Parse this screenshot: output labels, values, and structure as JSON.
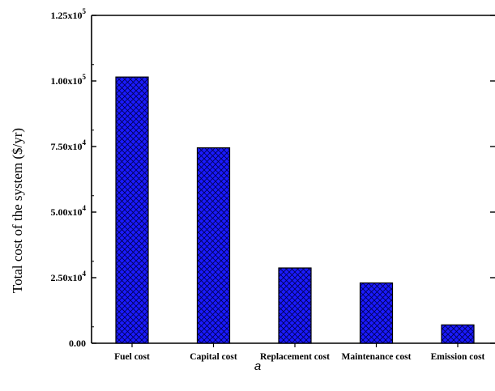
{
  "chart_data": {
    "type": "bar",
    "categories": [
      "Fuel cost",
      "Capital cost",
      "Replacement cost",
      "Maintenance cost",
      "Emission cost"
    ],
    "values": [
      101500,
      74500,
      28700,
      23000,
      7000
    ],
    "ylabel": "Total cost of the system ($/yr)",
    "xlabel": "",
    "ylim": [
      0,
      125000
    ],
    "yticks": [
      {
        "value": 0,
        "mantissa": "0.00",
        "exponent": ""
      },
      {
        "value": 25000,
        "mantissa": "2.50x10",
        "exponent": "4"
      },
      {
        "value": 50000,
        "mantissa": "5.00x10",
        "exponent": "4"
      },
      {
        "value": 75000,
        "mantissa": "7.50x10",
        "exponent": "4"
      },
      {
        "value": 100000,
        "mantissa": "1.00x10",
        "exponent": "5"
      },
      {
        "value": 125000,
        "mantissa": "1.25x10",
        "exponent": "5"
      }
    ],
    "bar_color": "#1a1aff",
    "bar_pattern": "crosshatch",
    "caption": "a"
  }
}
